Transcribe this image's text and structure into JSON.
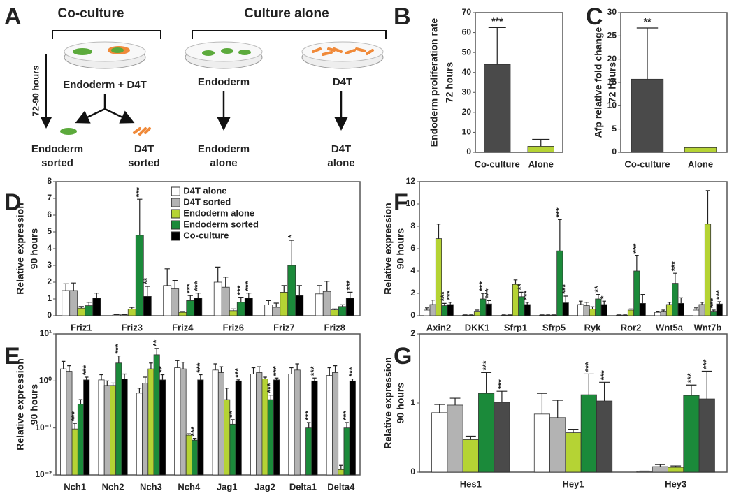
{
  "diagram": {
    "panel": "A",
    "groups": [
      "Co-culture",
      "Culture alone"
    ],
    "time": "72-90 hours",
    "dishes": [
      "Endoderm + D4T",
      "Endoderm",
      "D4T"
    ],
    "outcomes": [
      [
        "Endoderm",
        "sorted"
      ],
      [
        "D4T",
        "sorted"
      ],
      [
        "Endoderm",
        "alone"
      ],
      [
        "D4T",
        "alone"
      ]
    ]
  },
  "chart_data": [
    {
      "type": "bar",
      "panel": "B",
      "ylabel": [
        "Endoderm proliferation rate",
        "72 hours"
      ],
      "categories": [
        "Co-culture",
        "Alone"
      ],
      "values": [
        44,
        3
      ],
      "errors": [
        18.5,
        3.5
      ],
      "colors": [
        "#4a4a4a",
        "#b5d334"
      ],
      "significance": [
        "***",
        null
      ],
      "ylim": [
        0,
        70
      ],
      "yticks": [
        0,
        10,
        20,
        30,
        40,
        50,
        60,
        70
      ]
    },
    {
      "type": "bar",
      "panel": "C",
      "ylabel": [
        "Afp relative fold change",
        "72 hours"
      ],
      "categories": [
        "Co-culture",
        "Alone"
      ],
      "values": [
        15.7,
        1
      ],
      "errors": [
        11,
        null
      ],
      "colors": [
        "#4a4a4a",
        "#b5d334"
      ],
      "significance": [
        "**",
        null
      ],
      "ylim": [
        0,
        30
      ],
      "yticks": [
        0,
        5,
        10,
        15,
        20,
        25,
        30
      ]
    },
    {
      "type": "grouped_bar",
      "panel": "D",
      "ylabel": [
        "Relative expression",
        "90 hours"
      ],
      "categories": [
        "Friz1",
        "Friz3",
        "Friz4",
        "Friz6",
        "Friz7",
        "Friz8"
      ],
      "ylim": [
        0,
        8
      ],
      "yticks": [
        0,
        1,
        2,
        3,
        4,
        5,
        6,
        7,
        8
      ],
      "legend": "top-center",
      "series": [
        {
          "name": "D4T alone",
          "color": "#ffffff",
          "values": [
            1.5,
            0.05,
            1.8,
            2.0,
            0.65,
            1.3
          ],
          "errors": [
            0.4,
            0.02,
            1.0,
            0.9,
            0.25,
            0.5
          ],
          "significance": [
            null,
            null,
            null,
            null,
            null,
            null
          ]
        },
        {
          "name": "D4T sorted",
          "color": "#b3b3b3",
          "values": [
            1.5,
            0.05,
            1.6,
            1.7,
            0.5,
            1.45
          ],
          "errors": [
            0.45,
            0.02,
            0.5,
            0.6,
            0.25,
            0.6
          ],
          "significance": [
            null,
            null,
            null,
            null,
            null,
            null
          ]
        },
        {
          "name": "Endoderm alone",
          "color": "#b5d334",
          "values": [
            0.45,
            0.4,
            0.2,
            0.3,
            1.4,
            0.35
          ],
          "errors": [
            0.1,
            0.1,
            0.05,
            0.1,
            0.4,
            0.05
          ],
          "significance": [
            null,
            null,
            null,
            null,
            null,
            null
          ]
        },
        {
          "name": "Endoderm sorted",
          "color": "#1b8a3a",
          "values": [
            0.6,
            4.8,
            0.9,
            0.8,
            3.0,
            0.55
          ],
          "errors": [
            0.2,
            2.15,
            0.3,
            0.3,
            1.5,
            0.1
          ],
          "significance": [
            null,
            "***",
            "***",
            "***",
            "*",
            null
          ]
        },
        {
          "name": "Co-culture",
          "color": "#000000",
          "values": [
            1.05,
            1.15,
            1.05,
            1.05,
            1.2,
            1.05
          ],
          "errors": [
            0.3,
            0.6,
            0.3,
            0.3,
            0.6,
            0.35
          ],
          "significance": [
            null,
            "**",
            "***",
            "***",
            null,
            "***"
          ]
        }
      ]
    },
    {
      "type": "grouped_bar",
      "panel": "E",
      "ylabel": [
        "Relative expression",
        "90 hours"
      ],
      "categories": [
        "Nch1",
        "Nch2",
        "Nch3",
        "Nch4",
        "Jag1",
        "Jag2",
        "Delta1",
        "Delta4"
      ],
      "log_scale": true,
      "ylim": [
        0.01,
        10
      ],
      "yticks": [
        {
          "value": 0.01,
          "label": "10⁻²"
        },
        {
          "value": 0.1,
          "label": "10⁻¹"
        },
        {
          "value": 1,
          "label": "10⁰"
        },
        {
          "value": 10,
          "label": "10¹"
        }
      ],
      "series": [
        {
          "color": "#ffffff",
          "values": [
            1.8,
            1.05,
            0.55,
            1.9,
            1.7,
            1.4,
            1.4,
            1.3
          ],
          "errors": [
            0.8,
            0.3,
            0.15,
            0.8,
            0.6,
            0.5,
            0.5,
            0.6
          ],
          "significance": [
            null,
            null,
            null,
            null,
            null,
            null,
            null,
            null
          ]
        },
        {
          "color": "#b3b3b3",
          "values": [
            1.6,
            0.8,
            0.9,
            1.8,
            1.5,
            1.5,
            1.7,
            1.5
          ],
          "errors": [
            0.5,
            0.2,
            0.3,
            0.7,
            0.5,
            0.5,
            0.6,
            0.6
          ],
          "significance": [
            null,
            null,
            null,
            null,
            null,
            null,
            null,
            null
          ]
        },
        {
          "color": "#b5d334",
          "values": [
            0.095,
            0.8,
            1.8,
            0.07,
            0.4,
            1.1,
            0.01,
            0.013
          ],
          "errors": [
            0.03,
            0.1,
            0.6,
            0.005,
            0.3,
            0.1,
            null,
            0.003
          ],
          "significance": [
            "***",
            null,
            null,
            null,
            null,
            null,
            null,
            null
          ]
        },
        {
          "color": "#1b8a3a",
          "values": [
            0.32,
            2.4,
            3.6,
            0.055,
            0.12,
            0.4,
            0.1,
            0.1
          ],
          "errors": [
            0.08,
            1.0,
            1.3,
            0.005,
            0.03,
            0.1,
            0.03,
            0.03
          ],
          "significance": [
            null,
            "***",
            "**",
            "***",
            "**",
            "***",
            "***",
            "***"
          ]
        },
        {
          "color": "#000000",
          "values": [
            1.05,
            1.1,
            1.05,
            1.05,
            1.0,
            1.05,
            1.0,
            1.0
          ],
          "errors": [
            0.15,
            0.3,
            0.3,
            0.3,
            0.05,
            0.1,
            0.15,
            0.1
          ],
          "significance": [
            "***",
            null,
            "**",
            "***",
            "***",
            "***",
            "***",
            "***"
          ]
        }
      ]
    },
    {
      "type": "grouped_bar",
      "panel": "F",
      "ylabel": [
        "Relative expression",
        "90 hours"
      ],
      "categories": [
        "Axin2",
        "DKK1",
        "Sfrp1",
        "Sfrp5",
        "Ryk",
        "Ror2",
        "Wnt5a",
        "Wnt7b"
      ],
      "ylim": [
        0,
        12
      ],
      "yticks": [
        0,
        2,
        4,
        6,
        8,
        10,
        12
      ],
      "series": [
        {
          "color": "#ffffff",
          "values": [
            0.5,
            0.05,
            0.05,
            0.05,
            1.0,
            0.05,
            0.3,
            0.5
          ],
          "errors": [
            0.2,
            0.02,
            0.02,
            0.02,
            0.3,
            0.02,
            0.1,
            0.2
          ],
          "significance": [
            null,
            null,
            null,
            null,
            null,
            null,
            null,
            null
          ]
        },
        {
          "color": "#b3b3b3",
          "values": [
            1.0,
            0.05,
            0.05,
            0.05,
            0.9,
            0.05,
            0.4,
            1.0
          ],
          "errors": [
            0.4,
            0.02,
            0.02,
            0.02,
            0.3,
            0.02,
            0.1,
            0.2
          ],
          "significance": [
            null,
            null,
            null,
            null,
            null,
            null,
            null,
            null
          ]
        },
        {
          "color": "#b5d334",
          "values": [
            6.9,
            0.4,
            2.8,
            0.05,
            0.6,
            0.5,
            1.0,
            8.2
          ],
          "errors": [
            1.3,
            0.1,
            0.4,
            0.02,
            0.2,
            0.1,
            0.2,
            3.0
          ],
          "significance": [
            null,
            null,
            null,
            null,
            null,
            null,
            null,
            null
          ]
        },
        {
          "color": "#1b8a3a",
          "values": [
            0.9,
            1.5,
            1.7,
            5.8,
            1.5,
            4.0,
            2.9,
            0.4
          ],
          "errors": [
            0.2,
            0.5,
            0.4,
            2.8,
            0.4,
            1.4,
            0.9,
            0.1
          ],
          "significance": [
            "***",
            "***",
            "**",
            "***",
            "**",
            "***",
            "***",
            "***"
          ]
        },
        {
          "color": "#000000",
          "values": [
            1.0,
            1.05,
            1.0,
            1.15,
            1.0,
            1.1,
            1.1,
            1.05
          ],
          "errors": [
            0.2,
            0.3,
            0.2,
            0.6,
            0.3,
            0.8,
            0.5,
            0.2
          ],
          "significance": [
            "***",
            "***",
            "***",
            "***",
            "*",
            null,
            null,
            "***"
          ]
        }
      ]
    },
    {
      "type": "grouped_bar",
      "panel": "G",
      "ylabel": [
        "Relative expression",
        "90 hours"
      ],
      "categories": [
        "Hes1",
        "Hey1",
        "Hey3"
      ],
      "ylim": [
        0,
        2
      ],
      "yticks": [
        0,
        1,
        2
      ],
      "series": [
        {
          "color": "#ffffff",
          "values": [
            0.86,
            0.84,
            0.01
          ],
          "errors": [
            0.12,
            0.3,
            0.005
          ],
          "significance": [
            null,
            null,
            null
          ]
        },
        {
          "color": "#b3b3b3",
          "values": [
            0.97,
            0.79,
            0.08
          ],
          "errors": [
            0.1,
            0.25,
            0.03
          ],
          "significance": [
            null,
            null,
            null
          ]
        },
        {
          "color": "#b5d334",
          "values": [
            0.47,
            0.57,
            0.07
          ],
          "errors": [
            0.05,
            0.05,
            0.02
          ],
          "significance": [
            null,
            null,
            null
          ]
        },
        {
          "color": "#1b8a3a",
          "values": [
            1.14,
            1.12,
            1.11
          ],
          "errors": [
            0.3,
            0.3,
            0.15
          ],
          "significance": [
            "***",
            "***",
            "***"
          ]
        },
        {
          "color": "#4a4a4a",
          "values": [
            1.01,
            1.03,
            1.06
          ],
          "errors": [
            0.16,
            0.27,
            0.4
          ],
          "significance": [
            "***",
            "***",
            "***"
          ]
        }
      ]
    }
  ]
}
